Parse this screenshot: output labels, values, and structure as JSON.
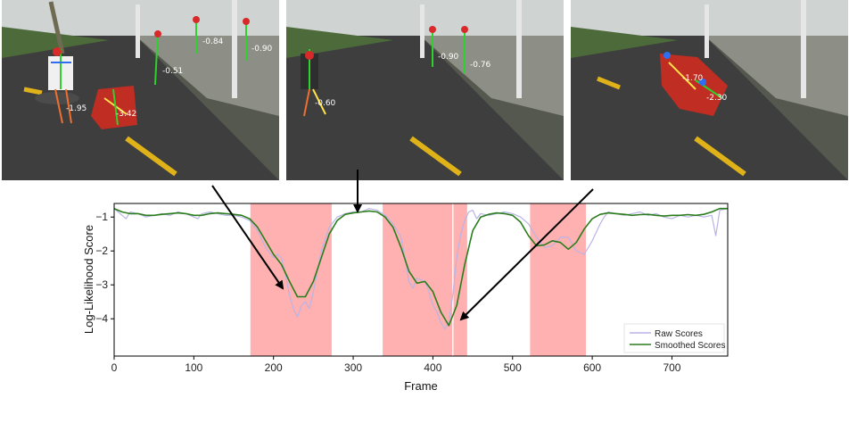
{
  "frames": [
    {
      "id": "frame-1",
      "scores": [
        "-0.84",
        "-0.90",
        "-0.51",
        "-1.95",
        "-3.42"
      ]
    },
    {
      "id": "frame-2",
      "scores": [
        "-0.90",
        "-0.76",
        "-0.60"
      ]
    },
    {
      "id": "frame-3",
      "scores": [
        "-1.70",
        "-2.30"
      ]
    }
  ],
  "colors": {
    "raw": "#b9b4e6",
    "smoothed": "#2a7d1c",
    "anomaly_band": "#ffb0b0",
    "road": "#3e3e3e",
    "lane_line": "#e0b21a"
  },
  "chart_data": {
    "type": "line",
    "xlabel": "Frame",
    "ylabel": "Log-Likelihood Score",
    "xlim": [
      0,
      770
    ],
    "ylim": [
      -5.1,
      -0.6
    ],
    "xticks": [
      0,
      100,
      200,
      300,
      400,
      500,
      600,
      700
    ],
    "yticks": [
      -1,
      -2,
      -3,
      -4
    ],
    "grid": false,
    "legend_position": "lower-right",
    "shaded_regions": [
      [
        171,
        273
      ],
      [
        337,
        443
      ],
      [
        522,
        592
      ]
    ],
    "marker_line_x": 425,
    "series": [
      {
        "name": "Raw Scores",
        "x": [
          0,
          10,
          15,
          20,
          30,
          40,
          50,
          60,
          70,
          80,
          90,
          100,
          105,
          110,
          120,
          130,
          140,
          150,
          160,
          170,
          180,
          190,
          200,
          205,
          210,
          215,
          220,
          225,
          230,
          235,
          240,
          245,
          250,
          255,
          260,
          270,
          280,
          290,
          300,
          310,
          320,
          330,
          340,
          350,
          360,
          365,
          370,
          375,
          380,
          385,
          390,
          395,
          400,
          405,
          410,
          415,
          420,
          425,
          430,
          435,
          440,
          445,
          450,
          455,
          460,
          470,
          480,
          490,
          500,
          510,
          520,
          530,
          540,
          550,
          560,
          570,
          580,
          590,
          600,
          610,
          615,
          620,
          630,
          640,
          650,
          660,
          670,
          680,
          690,
          700,
          710,
          720,
          730,
          740,
          750,
          755,
          760,
          770
        ],
        "y": [
          -0.75,
          -0.95,
          -1.05,
          -0.85,
          -0.9,
          -1.0,
          -0.95,
          -0.9,
          -0.95,
          -0.85,
          -0.9,
          -1.0,
          -1.05,
          -0.9,
          -0.85,
          -0.9,
          -0.95,
          -0.95,
          -1.0,
          -1.1,
          -1.4,
          -1.9,
          -2.2,
          -2.1,
          -2.2,
          -2.7,
          -3.3,
          -3.7,
          -3.95,
          -3.6,
          -3.5,
          -3.7,
          -3.2,
          -2.6,
          -2.0,
          -1.3,
          -1.0,
          -0.9,
          -0.85,
          -0.85,
          -0.75,
          -0.8,
          -0.95,
          -1.2,
          -1.6,
          -2.2,
          -2.9,
          -3.1,
          -2.8,
          -2.85,
          -2.9,
          -3.2,
          -3.6,
          -3.8,
          -4.1,
          -4.3,
          -4.1,
          -3.3,
          -2.2,
          -1.5,
          -1.1,
          -0.85,
          -0.8,
          -1.05,
          -0.9,
          -0.95,
          -0.9,
          -0.85,
          -0.9,
          -1.0,
          -1.2,
          -1.6,
          -1.9,
          -1.85,
          -1.6,
          -1.6,
          -2.0,
          -2.1,
          -1.7,
          -1.2,
          -1.0,
          -0.85,
          -0.9,
          -0.95,
          -0.9,
          -0.85,
          -0.95,
          -0.9,
          -1.0,
          -1.05,
          -0.95,
          -1.0,
          -0.95,
          -1.0,
          -0.95,
          -1.55,
          -0.8,
          -0.75
        ]
      },
      {
        "name": "Smoothed Scores",
        "x": [
          0,
          10,
          20,
          30,
          40,
          50,
          60,
          70,
          80,
          90,
          100,
          110,
          120,
          130,
          140,
          150,
          160,
          170,
          180,
          190,
          200,
          210,
          220,
          230,
          240,
          250,
          260,
          270,
          280,
          290,
          300,
          310,
          320,
          330,
          340,
          350,
          360,
          370,
          380,
          390,
          400,
          410,
          420,
          430,
          440,
          450,
          460,
          470,
          480,
          490,
          500,
          510,
          520,
          530,
          540,
          550,
          560,
          570,
          580,
          590,
          600,
          610,
          620,
          630,
          640,
          650,
          660,
          670,
          680,
          690,
          700,
          710,
          720,
          730,
          740,
          750,
          760,
          770
        ],
        "y": [
          -0.75,
          -0.85,
          -0.9,
          -0.9,
          -0.95,
          -0.95,
          -0.92,
          -0.9,
          -0.88,
          -0.9,
          -0.95,
          -0.95,
          -0.9,
          -0.88,
          -0.9,
          -0.92,
          -0.95,
          -1.05,
          -1.3,
          -1.7,
          -2.1,
          -2.4,
          -2.9,
          -3.35,
          -3.35,
          -2.9,
          -2.2,
          -1.5,
          -1.1,
          -0.92,
          -0.88,
          -0.85,
          -0.82,
          -0.85,
          -1.0,
          -1.3,
          -1.9,
          -2.6,
          -2.95,
          -2.9,
          -3.2,
          -3.8,
          -4.2,
          -3.6,
          -2.4,
          -1.4,
          -1.0,
          -0.92,
          -0.88,
          -0.9,
          -0.95,
          -1.15,
          -1.55,
          -1.85,
          -1.82,
          -1.7,
          -1.75,
          -1.95,
          -1.75,
          -1.35,
          -1.05,
          -0.92,
          -0.88,
          -0.9,
          -0.92,
          -0.95,
          -0.93,
          -0.92,
          -0.95,
          -0.97,
          -0.95,
          -0.95,
          -0.93,
          -0.95,
          -0.92,
          -0.85,
          -0.75,
          -0.75
        ]
      }
    ]
  }
}
